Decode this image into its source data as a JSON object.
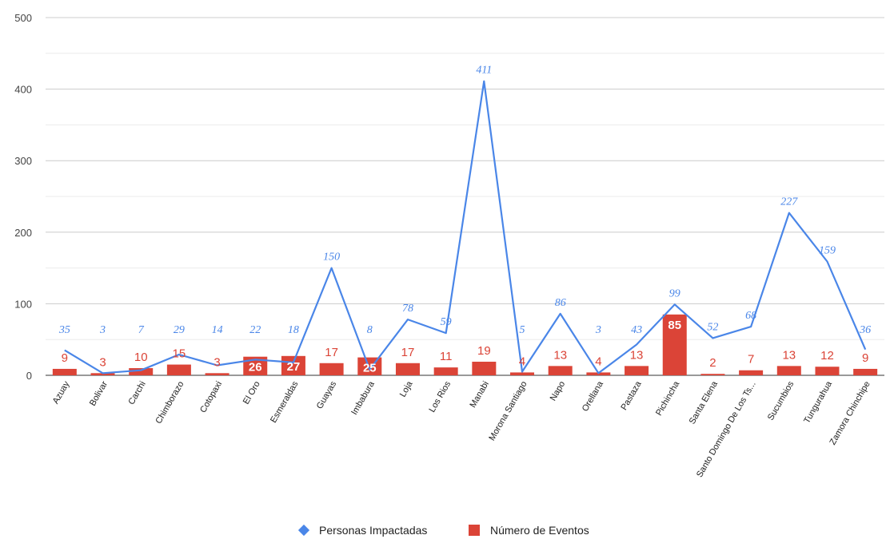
{
  "chart_data": {
    "type": "bar",
    "categories": [
      "Azuay",
      "Bolivar",
      "Carchi",
      "Chimborazo",
      "Cotopaxi",
      "El Oro",
      "Esmeraldas",
      "Guayas",
      "Imbabura",
      "Loja",
      "Los Rios",
      "Manabi",
      "Morona Santiago",
      "Napo",
      "Orellana",
      "Pastaza",
      "Pichincha",
      "Santa Elena",
      "Santo Domingo De Los Ts...",
      "Sucumbios",
      "Tungurahua",
      "Zamora Chinchipe"
    ],
    "series": [
      {
        "name": "Personas Impactadas",
        "type": "line",
        "color": "#4a86e8",
        "values": [
          35,
          3,
          7,
          29,
          14,
          22,
          18,
          150,
          8,
          78,
          59,
          411,
          5,
          86,
          3,
          43,
          99,
          52,
          68,
          227,
          159,
          36
        ]
      },
      {
        "name": "Número de Eventos",
        "type": "bar",
        "color": "#db4437",
        "values": [
          9,
          3,
          10,
          15,
          3,
          26,
          27,
          17,
          25,
          17,
          11,
          19,
          4,
          13,
          4,
          13,
          85,
          2,
          7,
          13,
          12,
          9
        ]
      }
    ],
    "yticks": [
      0,
      100,
      200,
      300,
      400,
      500
    ],
    "ylim": [
      0,
      500
    ],
    "grid": true,
    "legend_position": "bottom"
  }
}
